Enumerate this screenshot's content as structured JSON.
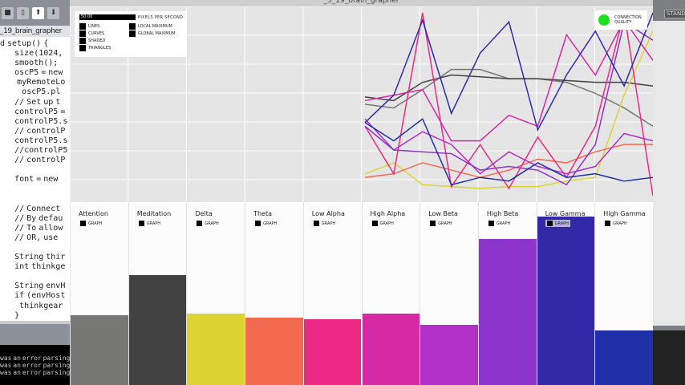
{
  "window_title": "_5_19_brain_grapher",
  "ide": {
    "tab": "_19_brain_grapher",
    "code_lines": [
      "d setup() {",
      "      size(1024,",
      "      smooth();",
      "      oscP5 = new",
      "       myRemoteLo",
      "         oscP5.pl",
      "      // Set up t",
      "      controlP5 =",
      "      controlP5.s",
      "      // controlP",
      "      controlP5.s",
      "      //controlP5",
      "      // controlP",
      "",
      "      font = new",
      "",
      "",
      "      // Connect",
      "      // By defau",
      "      // To allow",
      "      // OR, use",
      "",
      "      String thir",
      "      int thinkge",
      "",
      "      String envH",
      "      if (envHost",
      "        thinkgear",
      "      }"
    ],
    "console_lines": [
      "was an error parsing",
      "was an error parsing",
      "was an error parsing"
    ]
  },
  "legend": {
    "pixels_value": "50.00",
    "pixels_label": "PIXELS PER SECOND",
    "options": [
      "LINES",
      "CURVES",
      "SHADED",
      "TRIANGLES"
    ],
    "markers": [
      "LOCAL MAXIMUM",
      "GLOBAL MAXIMUM"
    ]
  },
  "connection": {
    "label_1": "CONNECTION",
    "label_2": "QUALITY",
    "color": "#1ee01e"
  },
  "right_button": "STAND",
  "graph_toggle_label": "GRAPH",
  "channels": [
    {
      "name": "Attention",
      "color": "#777876",
      "level": 0.38,
      "line": [
        50,
        48,
        58,
        69,
        69,
        64,
        64,
        62,
        56,
        48,
        38
      ]
    },
    {
      "name": "Meditation",
      "color": "#424242",
      "level": 0.6,
      "line": [
        54,
        52,
        62,
        66,
        65,
        64,
        64,
        63,
        62,
        62,
        60
      ]
    },
    {
      "name": "Delta",
      "color": "#dcd432",
      "level": 0.39,
      "line": [
        12,
        18,
        6,
        5,
        4,
        5,
        5,
        8,
        10,
        55,
        90
      ]
    },
    {
      "name": "Theta",
      "color": "#f26a50",
      "level": 0.37,
      "line": [
        10,
        12,
        18,
        14,
        10,
        14,
        20,
        18,
        24,
        28,
        28
      ]
    },
    {
      "name": "Low Alpha",
      "color": "#ec2a86",
      "level": 0.36,
      "line": [
        38,
        12,
        100,
        5,
        28,
        4,
        32,
        10,
        38,
        100,
        0
      ]
    },
    {
      "name": "High Alpha",
      "color": "#d52aa4",
      "level": 0.39,
      "line": [
        52,
        55,
        58,
        30,
        30,
        44,
        38,
        88,
        66,
        96,
        74
      ]
    },
    {
      "name": "Low Beta",
      "color": "#b030c8",
      "level": 0.33,
      "line": [
        42,
        25,
        35,
        28,
        12,
        24,
        16,
        12,
        16,
        34,
        30
      ]
    },
    {
      "name": "High Beta",
      "color": "#8b35cc",
      "level": 0.8,
      "line": [
        38,
        25,
        24,
        23,
        14,
        16,
        14,
        6,
        28,
        95,
        85
      ]
    },
    {
      "name": "Low Gamma",
      "color": "#3229a8",
      "level": 0.92,
      "line": [
        40,
        55,
        96,
        45,
        78,
        95,
        36,
        66,
        90,
        60,
        100
      ]
    },
    {
      "name": "High Gamma",
      "color": "#2030a8",
      "level": 0.3,
      "line": [
        40,
        30,
        42,
        6,
        10,
        8,
        18,
        10,
        12,
        8,
        10
      ]
    }
  ]
}
